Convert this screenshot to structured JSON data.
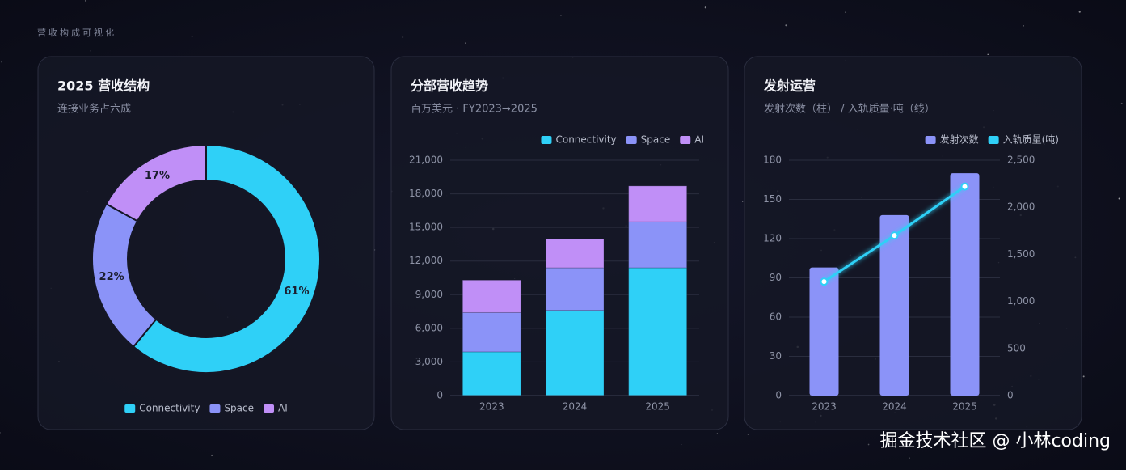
{
  "header": {
    "title": "营收构成可视化"
  },
  "watermark": "掘金技术社区 @ 小林coding",
  "chart_data": [
    {
      "type": "pie",
      "title": "2025 营收结构",
      "subtitle": "连接业务占六成",
      "categories": [
        "Connectivity",
        "Space",
        "AI"
      ],
      "values": [
        61,
        22,
        17
      ],
      "value_labels": [
        "61%",
        "22%",
        "17%"
      ],
      "colors": [
        "#2fd0f7",
        "#8b93f8",
        "#c08ff7"
      ],
      "legend": "bottom"
    },
    {
      "type": "bar",
      "title": "分部营收趋势",
      "subtitle": "百万美元 · FY2023→2025",
      "stacked": true,
      "grid": true,
      "legend": "top-right",
      "categories": [
        "2023",
        "2024",
        "2025"
      ],
      "series": [
        {
          "name": "Connectivity",
          "color": "#2fd0f7",
          "values": [
            3900,
            7600,
            11400
          ]
        },
        {
          "name": "Space",
          "color": "#8b93f8",
          "values": [
            3500,
            3800,
            4100
          ]
        },
        {
          "name": "AI",
          "color": "#c08ff7",
          "values": [
            2900,
            2600,
            3200
          ]
        }
      ],
      "ylim": [
        0,
        21000
      ],
      "yticks": [
        0,
        {
          "value": 3000,
          "label": "3,000"
        },
        {
          "value": 6000,
          "label": "6,000"
        },
        {
          "value": 9000,
          "label": "9,000"
        },
        {
          "value": 12000,
          "label": "12,000"
        },
        {
          "value": 15000,
          "label": "15,000"
        },
        {
          "value": 18000,
          "label": "18,000"
        },
        {
          "value": 21000,
          "label": "21,000"
        }
      ]
    },
    {
      "type": "combo",
      "title": "发射运营",
      "subtitle": "发射次数（柱） / 入轨质量·吨（线）",
      "grid": true,
      "legend": "top-right",
      "categories": [
        "2023",
        "2024",
        "2025"
      ],
      "series": [
        {
          "name": "发射次数",
          "type": "bar",
          "color": "#8b93f8",
          "values": [
            98,
            138,
            170
          ]
        },
        {
          "name": "入轨质量(吨)",
          "type": "line",
          "axis": "y2",
          "color": "#2fd0f7",
          "values": [
            1210,
            1700,
            2220
          ]
        }
      ],
      "ylim": [
        0,
        180
      ],
      "yticks": [
        0,
        30,
        60,
        90,
        120,
        150,
        180
      ],
      "y2lim": [
        0,
        2500
      ],
      "y2ticks": [
        0,
        500,
        {
          "value": 1000,
          "label": "1,000"
        },
        {
          "value": 1500,
          "label": "1,500"
        },
        {
          "value": 2000,
          "label": "2,000"
        },
        {
          "value": 2500,
          "label": "2,500"
        }
      ]
    }
  ]
}
